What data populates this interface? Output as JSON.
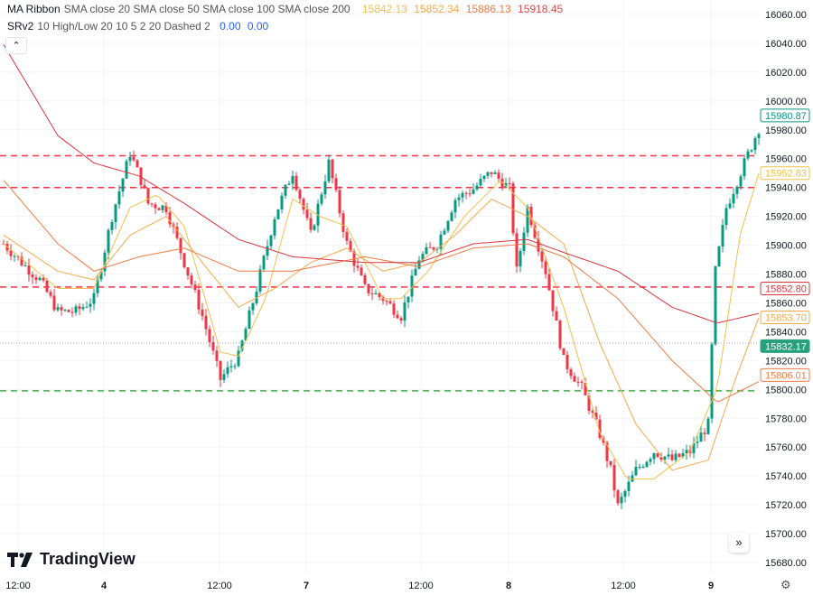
{
  "legend": {
    "ma_title": "MA Ribbon",
    "ma_params": "SMA close 20 SMA close 50 SMA close 100 SMA close 200",
    "ma_values": [
      "15842.13",
      "15852.34",
      "15886.13",
      "15918.45"
    ],
    "ma_colors": [
      "#f0c14b",
      "#f5a94e",
      "#ee7b45",
      "#e0474c"
    ],
    "sr_title": "SRv2",
    "sr_params": "10 High/Low 20 10 5 2 20 Dashed 2",
    "sr_values": [
      "0.00",
      "0.00"
    ],
    "sr_value_color": "#2962ff",
    "collapse_icon": "chevron-up-icon"
  },
  "branding": {
    "name": "TradingView"
  },
  "controls": {
    "scroll_right_icon": "double-chevron-right-icon",
    "settings_icon": "gear-icon"
  },
  "chart_data": {
    "type": "candlestick",
    "ylim": [
      15670,
      16070
    ],
    "y_ticks": [
      "16060.00",
      "16040.00",
      "16020.00",
      "16000.00",
      "15980.00",
      "15960.00",
      "15940.00",
      "15920.00",
      "15900.00",
      "15880.00",
      "15860.00",
      "15840.00",
      "15820.00",
      "15800.00",
      "15780.00",
      "15760.00",
      "15740.00",
      "15720.00",
      "15700.00",
      "15680.00"
    ],
    "x_ticks": [
      "12:00",
      "4",
      "12:00",
      "7",
      "12:00",
      "8",
      "12:00",
      "9"
    ],
    "grid": true,
    "up_color": "#089981",
    "down_color": "#f23645",
    "price_path": [
      [
        0,
        15901
      ],
      [
        2.5,
        15888
      ],
      [
        5,
        15876
      ],
      [
        7.5,
        15854
      ],
      [
        10,
        15854
      ],
      [
        12.5,
        15863
      ],
      [
        15,
        15920
      ],
      [
        17.5,
        15964
      ],
      [
        19,
        15945
      ],
      [
        20,
        15929
      ],
      [
        22.5,
        15926
      ],
      [
        25,
        15888
      ],
      [
        27.5,
        15851
      ],
      [
        30,
        15807
      ],
      [
        32.5,
        15823
      ],
      [
        35,
        15870
      ],
      [
        37.5,
        15920
      ],
      [
        40,
        15951
      ],
      [
        42.5,
        15907
      ],
      [
        45,
        15957
      ],
      [
        47.5,
        15901
      ],
      [
        50,
        15870
      ],
      [
        52.5,
        15863
      ],
      [
        55,
        15851
      ],
      [
        57.5,
        15891
      ],
      [
        60,
        15901
      ],
      [
        62.5,
        15932
      ],
      [
        65,
        15939
      ],
      [
        67.5,
        15951
      ],
      [
        70,
        15939
      ],
      [
        71,
        15882
      ],
      [
        72.5,
        15926
      ],
      [
        75,
        15882
      ],
      [
        77.5,
        15820
      ],
      [
        80,
        15801
      ],
      [
        82.5,
        15769
      ],
      [
        84,
        15744
      ],
      [
        85,
        15719
      ],
      [
        87.5,
        15744
      ],
      [
        90,
        15757
      ],
      [
        92.5,
        15751
      ],
      [
        95,
        15757
      ],
      [
        97.5,
        15776
      ],
      [
        98.5,
        15882
      ],
      [
        100,
        15926
      ],
      [
        102.5,
        15957
      ],
      [
        104.5,
        15981
      ]
    ],
    "moving_averages": [
      {
        "name": "SMA 20",
        "color": "#f0c14b",
        "last": "15952.83",
        "points": [
          [
            0,
            15901
          ],
          [
            7.5,
            15870
          ],
          [
            12.5,
            15870
          ],
          [
            17.5,
            15926
          ],
          [
            21.25,
            15935
          ],
          [
            25,
            15913
          ],
          [
            30,
            15826
          ],
          [
            32.5,
            15823
          ],
          [
            36.25,
            15863
          ],
          [
            40,
            15932
          ],
          [
            43.75,
            15920
          ],
          [
            47.5,
            15913
          ],
          [
            52.5,
            15863
          ],
          [
            55,
            15863
          ],
          [
            58.75,
            15882
          ],
          [
            63.75,
            15920
          ],
          [
            68.75,
            15945
          ],
          [
            72.5,
            15926
          ],
          [
            77.5,
            15857
          ],
          [
            82.5,
            15770
          ],
          [
            86.25,
            15738
          ],
          [
            90,
            15738
          ],
          [
            95,
            15757
          ],
          [
            98.75,
            15801
          ],
          [
            101.9,
            15907
          ],
          [
            104.75,
            15954
          ]
        ]
      },
      {
        "name": "SMA 50",
        "color": "#f5a94e",
        "last": "15853.70",
        "points": [
          [
            0,
            15907
          ],
          [
            7.5,
            15882
          ],
          [
            12.5,
            15876
          ],
          [
            17.5,
            15907
          ],
          [
            22.5,
            15920
          ],
          [
            27.5,
            15888
          ],
          [
            32.5,
            15857
          ],
          [
            37.5,
            15870
          ],
          [
            42.5,
            15888
          ],
          [
            47.5,
            15898
          ],
          [
            52.5,
            15882
          ],
          [
            57.5,
            15888
          ],
          [
            62.5,
            15907
          ],
          [
            67.5,
            15932
          ],
          [
            72.5,
            15920
          ],
          [
            77.5,
            15901
          ],
          [
            82.5,
            15832
          ],
          [
            87.5,
            15776
          ],
          [
            92.5,
            15744
          ],
          [
            97.5,
            15751
          ],
          [
            101.25,
            15807
          ],
          [
            104.75,
            15853
          ]
        ]
      },
      {
        "name": "SMA 100",
        "color": "#ee7b45",
        "last": "15806.01",
        "points": [
          [
            0,
            15945
          ],
          [
            7.5,
            15901
          ],
          [
            12.5,
            15882
          ],
          [
            18.75,
            15892
          ],
          [
            25,
            15898
          ],
          [
            32.5,
            15882
          ],
          [
            40,
            15882
          ],
          [
            50,
            15892
          ],
          [
            57.5,
            15885
          ],
          [
            65,
            15898
          ],
          [
            72.5,
            15901
          ],
          [
            77.5,
            15892
          ],
          [
            85,
            15863
          ],
          [
            92.5,
            15820
          ],
          [
            98.75,
            15791
          ],
          [
            104.75,
            15806
          ]
        ]
      },
      {
        "name": "SMA 200",
        "color": "#d9363e",
        "last": "15852.80",
        "points": [
          [
            0,
            16039
          ],
          [
            7.5,
            15976
          ],
          [
            12.5,
            15957
          ],
          [
            18.75,
            15948
          ],
          [
            25,
            15929
          ],
          [
            32.5,
            15904
          ],
          [
            40,
            15892
          ],
          [
            50,
            15888
          ],
          [
            57.5,
            15888
          ],
          [
            65,
            15901
          ],
          [
            72.5,
            15904
          ],
          [
            77.5,
            15895
          ],
          [
            85,
            15882
          ],
          [
            92.5,
            15857
          ],
          [
            98.75,
            15846
          ],
          [
            104.75,
            15853
          ]
        ]
      }
    ],
    "sr_levels": [
      {
        "price": 15962,
        "color": "#f23645"
      },
      {
        "price": 15940,
        "color": "#f23645"
      },
      {
        "price": 15871,
        "color": "#f23645"
      },
      {
        "price": 15799,
        "color": "#4caf50"
      }
    ],
    "last_high_label": {
      "value": "15980.87",
      "color": "#089981"
    },
    "current_price": {
      "value": "15832.17",
      "color": "#26a17b"
    }
  }
}
